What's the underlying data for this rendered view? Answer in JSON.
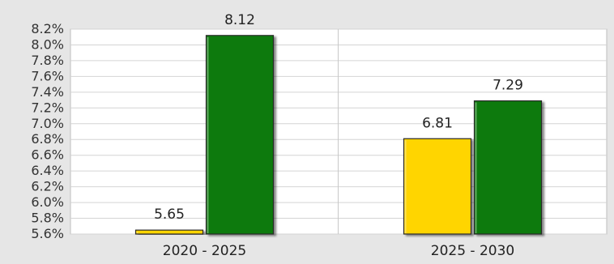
{
  "chart_data": {
    "type": "bar",
    "categories": [
      "2020 - 2025",
      "2025 - 2030"
    ],
    "series": [
      {
        "values": [
          5.65,
          6.81
        ],
        "color": "#ffd500"
      },
      {
        "values": [
          8.12,
          7.29
        ],
        "color": "#0a7a0a"
      }
    ],
    "data_labels": [
      [
        "5.65",
        "6.81"
      ],
      [
        "8.12",
        "7.29"
      ]
    ],
    "ylim": [
      5.6,
      8.2
    ],
    "yticks": [
      "5.6%",
      "5.8%",
      "6.0%",
      "6.2%",
      "6.4%",
      "6.6%",
      "6.8%",
      "7.0%",
      "7.2%",
      "7.4%",
      "7.6%",
      "7.8%",
      "8.0%",
      "8.2%"
    ],
    "ytick_values": [
      5.6,
      5.8,
      6.0,
      6.2,
      6.4,
      6.6,
      6.8,
      7.0,
      7.2,
      7.4,
      7.6,
      7.8,
      8.0,
      8.2
    ],
    "grid": true,
    "background": "#e6e6e6",
    "plot_background": "#ffffff"
  }
}
